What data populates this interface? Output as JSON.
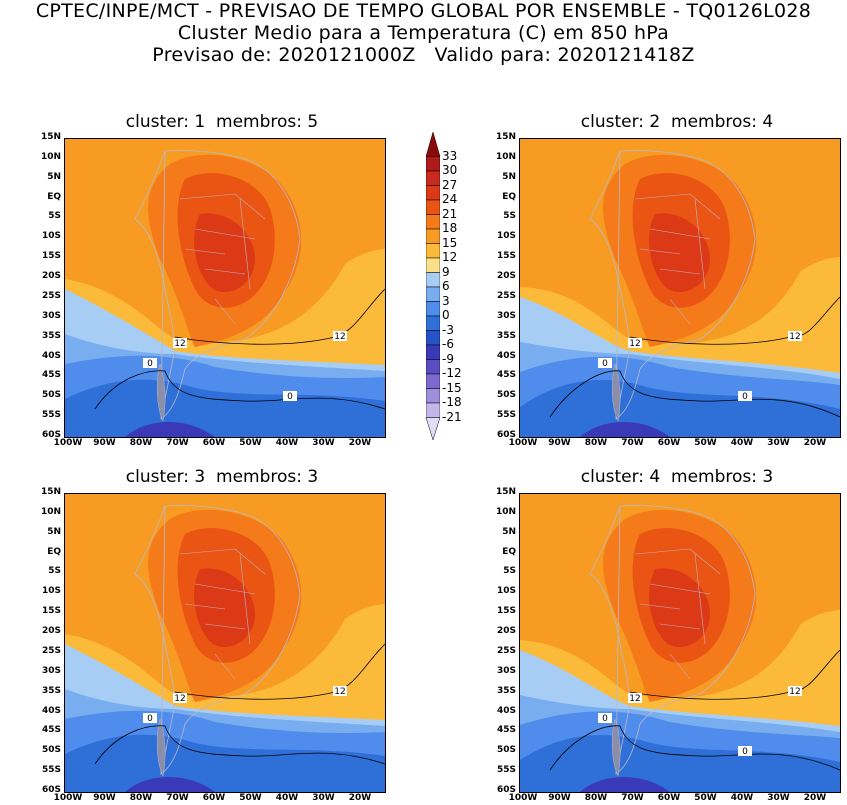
{
  "header": {
    "line1": "CPTEC/INPE/MCT - PREVISAO DE TEMPO GLOBAL POR ENSEMBLE - TQ0126L028",
    "line2": "Cluster Medio para a Temperatura (C) em 850 hPa",
    "line3": "Previsao de: 2020121000Z   Valido para: 2020121418Z"
  },
  "panels": [
    {
      "title": "cluster: 1  membros: 5",
      "contour_labels": [
        "12",
        "12",
        "0",
        "0"
      ]
    },
    {
      "title": "cluster: 2  membros: 4",
      "contour_labels": [
        "12",
        "12",
        "0",
        "0"
      ]
    },
    {
      "title": "cluster: 3  membros: 3",
      "contour_labels": [
        "12",
        "12",
        "0"
      ]
    },
    {
      "title": "cluster: 4  membros: 3",
      "contour_labels": [
        "12",
        "12",
        "0",
        "0"
      ]
    }
  ],
  "lat_labels": [
    "15N",
    "10N",
    "5N",
    "EQ",
    "5S",
    "10S",
    "15S",
    "20S",
    "25S",
    "30S",
    "35S",
    "40S",
    "45S",
    "50S",
    "55S",
    "60S"
  ],
  "lon_labels": [
    "100W",
    "90W",
    "80W",
    "70W",
    "60W",
    "50W",
    "40W",
    "30W",
    "20W"
  ],
  "colorbar": {
    "levels": [
      "33",
      "30",
      "27",
      "24",
      "21",
      "18",
      "15",
      "12",
      "9",
      "6",
      "3",
      "0",
      "-3",
      "-6",
      "-9",
      "-12",
      "-15",
      "-18",
      "-21"
    ],
    "colors": [
      "#8b0a0a",
      "#b01a1a",
      "#c92a1e",
      "#dc3a16",
      "#ea5513",
      "#f47a1a",
      "#f89b22",
      "#fbba3a",
      "#fbe08a",
      "#a8cdf5",
      "#78aef0",
      "#4f8ceb",
      "#2f6fd8",
      "#2553c7",
      "#3a3ab8",
      "#5a4cc4",
      "#7c6ad0",
      "#9e8fdc",
      "#c2b6ea",
      "#e2dcf6"
    ]
  }
}
